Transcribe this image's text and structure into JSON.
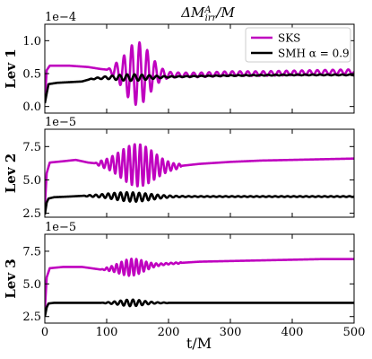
{
  "figure": {
    "title": "ΔM",
    "title_super": "A",
    "title_sub": "irr",
    "title_suffix": "/M",
    "xlabel": "t/M"
  },
  "chart_data": [
    {
      "type": "line",
      "panel": "Lev 1",
      "ylabel": "Lev 1",
      "offset_label": "1e−4",
      "y_scale": 0.0001,
      "ylim": [
        -0.1,
        1.25
      ],
      "xlim": [
        0,
        500
      ],
      "yticks": [
        0.0,
        0.5,
        1.0
      ],
      "ytick_labels": [
        "0.0",
        "0.5",
        "1.0"
      ],
      "xticks": [
        0,
        100,
        200,
        300,
        400,
        500
      ],
      "legend": {
        "placement": "upper right",
        "entries": [
          "SKS",
          "SMH α = 0.9"
        ]
      },
      "series": [
        {
          "name": "SKS",
          "color": "#bf00bf",
          "x": [
            0,
            3,
            8,
            15,
            40,
            70,
            90,
            110,
            130,
            140,
            150,
            170,
            200,
            250,
            300,
            350,
            400,
            450,
            500
          ],
          "y": [
            0.1,
            0.55,
            0.62,
            0.62,
            0.62,
            0.6,
            0.57,
            0.55,
            0.5,
            0.5,
            0.5,
            0.5,
            0.48,
            0.48,
            0.5,
            0.5,
            0.51,
            0.52,
            0.53
          ],
          "oscillation": {
            "t_start": 100,
            "t_end": 500,
            "peak_t": 150,
            "period": 12.5,
            "peak_amplitude": 0.48,
            "tail_amplitude": 0.035
          }
        },
        {
          "name": "SMH α = 0.9",
          "color": "#000000",
          "x": [
            0,
            3,
            6,
            20,
            40,
            60,
            75,
            100,
            150,
            200,
            300,
            400,
            500
          ],
          "y": [
            0.05,
            0.2,
            0.34,
            0.36,
            0.37,
            0.38,
            0.42,
            0.44,
            0.44,
            0.45,
            0.47,
            0.48,
            0.48
          ],
          "oscillation": {
            "t_start": 70,
            "t_end": 500,
            "peak_t": 140,
            "period": 12,
            "peak_amplitude": 0.05,
            "tail_amplitude": 0.006
          }
        }
      ]
    },
    {
      "type": "line",
      "panel": "Lev 2",
      "ylabel": "Lev 2",
      "offset_label": "1e−5",
      "y_scale": 1e-05,
      "ylim": [
        2.2,
        8.8
      ],
      "xlim": [
        0,
        500
      ],
      "yticks": [
        2.5,
        5.0,
        7.5
      ],
      "ytick_labels": [
        "2.5",
        "5.0",
        "7.5"
      ],
      "xticks": [
        0,
        100,
        200,
        300,
        400,
        500
      ],
      "series": [
        {
          "name": "SKS",
          "color": "#bf00bf",
          "x": [
            0,
            3,
            8,
            30,
            50,
            70,
            90,
            110,
            150,
            190,
            210,
            250,
            300,
            350,
            400,
            450,
            500
          ],
          "y": [
            3.0,
            5.5,
            6.3,
            6.4,
            6.5,
            6.3,
            6.2,
            6.2,
            6.1,
            6.0,
            6.0,
            6.2,
            6.35,
            6.45,
            6.5,
            6.55,
            6.6
          ],
          "oscillation": {
            "t_start": 80,
            "t_end": 220,
            "peak_t": 150,
            "period": 9,
            "peak_amplitude": 1.6,
            "tail_amplitude": 0.1
          }
        },
        {
          "name": "SMH α = 0.9",
          "color": "#000000",
          "x": [
            0,
            3,
            6,
            15,
            40,
            60,
            100,
            150,
            200,
            300,
            400,
            500
          ],
          "y": [
            2.4,
            3.3,
            3.6,
            3.7,
            3.75,
            3.8,
            3.8,
            3.7,
            3.75,
            3.75,
            3.75,
            3.75
          ],
          "oscillation": {
            "t_start": 60,
            "t_end": 500,
            "peak_t": 140,
            "period": 10,
            "peak_amplitude": 0.35,
            "tail_amplitude": 0.03
          }
        }
      ]
    },
    {
      "type": "line",
      "panel": "Lev 3",
      "ylabel": "Lev 3",
      "offset_label": "1e−5",
      "y_scale": 1e-05,
      "ylim": [
        2.0,
        8.8
      ],
      "xlim": [
        0,
        500
      ],
      "yticks": [
        2.5,
        5.0,
        7.5
      ],
      "ytick_labels": [
        "2.5",
        "5.0",
        "7.5"
      ],
      "xticks": [
        0,
        100,
        200,
        300,
        400,
        500
      ],
      "xtick_labels": [
        "0",
        "100",
        "200",
        "300",
        "400",
        "500"
      ],
      "series": [
        {
          "name": "SKS",
          "color": "#bf00bf",
          "x": [
            0,
            3,
            8,
            30,
            60,
            90,
            120,
            160,
            200,
            250,
            300,
            350,
            400,
            450,
            500
          ],
          "y": [
            3.0,
            5.5,
            6.2,
            6.3,
            6.3,
            6.1,
            6.2,
            6.35,
            6.55,
            6.7,
            6.75,
            6.8,
            6.85,
            6.9,
            6.9
          ],
          "oscillation": {
            "t_start": 90,
            "t_end": 220,
            "peak_t": 140,
            "period": 8,
            "peak_amplitude": 0.65,
            "tail_amplitude": 0.05
          }
        },
        {
          "name": "SMH α = 0.9",
          "color": "#000000",
          "x": [
            0,
            3,
            6,
            15,
            40,
            100,
            200,
            300,
            400,
            500
          ],
          "y": [
            2.5,
            3.2,
            3.5,
            3.55,
            3.55,
            3.55,
            3.55,
            3.55,
            3.55,
            3.55
          ],
          "oscillation": {
            "t_start": 90,
            "t_end": 200,
            "peak_t": 140,
            "period": 10,
            "peak_amplitude": 0.25,
            "tail_amplitude": 0.02
          }
        }
      ]
    }
  ]
}
